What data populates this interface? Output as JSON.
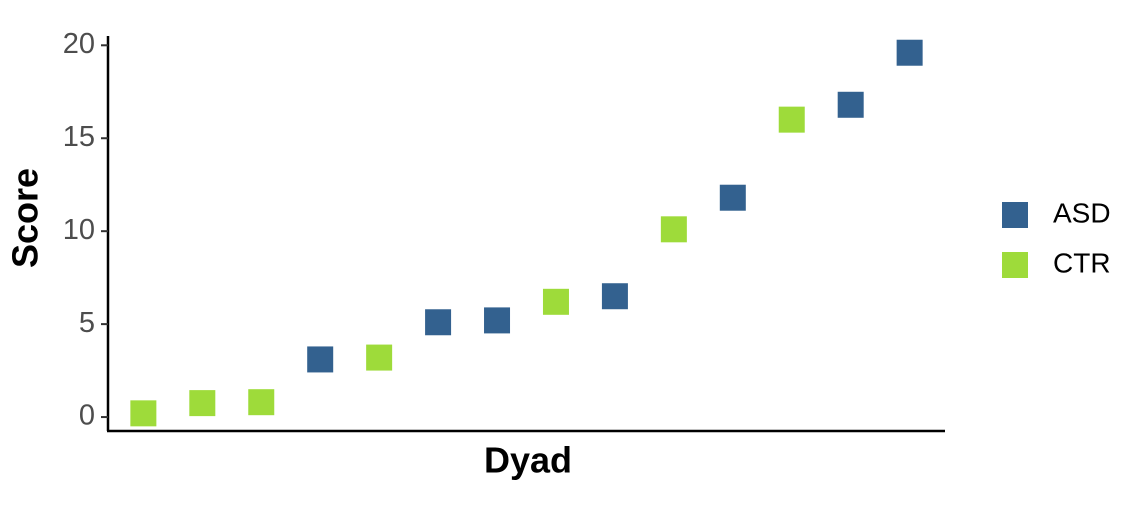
{
  "chart_data": {
    "type": "scatter",
    "x_label": "Dyad",
    "y_label": "Score",
    "categories": [
      null,
      null,
      null,
      null,
      null,
      null,
      null,
      null,
      null,
      null,
      null,
      null,
      null,
      null
    ],
    "series": [
      {
        "name": "ASD",
        "color": "#33618f",
        "values": [
          null,
          null,
          null,
          3.1,
          null,
          5.1,
          5.2,
          null,
          6.5,
          null,
          11.8,
          null,
          16.8,
          19.6
        ]
      },
      {
        "name": "CTR",
        "color": "#9edb3a",
        "values": [
          0.2,
          0.75,
          0.8,
          null,
          3.2,
          null,
          null,
          6.2,
          null,
          10.1,
          null,
          16.0,
          null,
          null
        ]
      }
    ],
    "ylim": [
      -0.75,
      20.5
    ],
    "yticks": [
      0,
      5,
      10,
      15,
      20
    ],
    "grid": false,
    "legend": "right"
  }
}
